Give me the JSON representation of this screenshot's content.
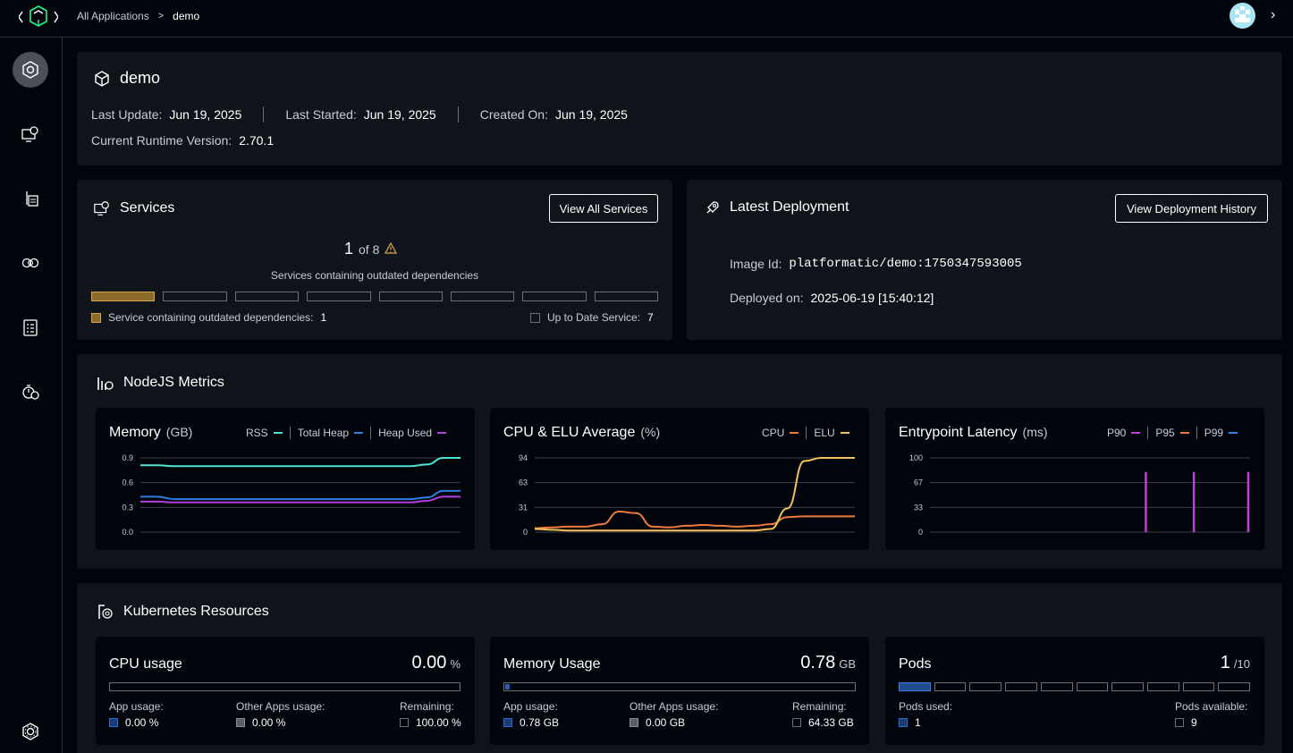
{
  "breadcrumb": {
    "root": "All Applications",
    "current": "demo"
  },
  "app": {
    "name": "demo",
    "last_update_label": "Last Update:",
    "last_update": "Jun 19, 2025",
    "last_started_label": "Last Started:",
    "last_started": "Jun 19, 2025",
    "created_on_label": "Created On:",
    "created_on": "Jun 19, 2025",
    "runtime_label": "Current Runtime Version:",
    "runtime": "2.70.1"
  },
  "services": {
    "title": "Services",
    "view_all": "View All Services",
    "count": "1",
    "of_total": "of 8",
    "description": "Services containing outdated dependencies",
    "outdated_label": "Service containing outdated dependencies:",
    "outdated_count": "1",
    "uptodate_label": "Up to Date Service:",
    "uptodate_count": "7",
    "warning_color": "#d6a44b"
  },
  "deployment": {
    "title": "Latest Deployment",
    "history_button": "View Deployment History",
    "image_label": "Image Id:",
    "image_id": "platformatic/demo:1750347593005",
    "deployed_label": "Deployed on:",
    "deployed_on": "2025-06-19 [15:40:12]"
  },
  "nodejs": {
    "title": "NodeJS Metrics",
    "memory": {
      "title": "Memory",
      "unit": "(GB)",
      "legend": [
        {
          "name": "RSS",
          "color": "#4fe3d1"
        },
        {
          "name": "Total Heap",
          "color": "#2f7fe0"
        },
        {
          "name": "Heap Used",
          "color": "#b43de0"
        }
      ]
    },
    "cpu": {
      "title": "CPU & ELU Average",
      "unit": "(%)",
      "legend": [
        {
          "name": "CPU",
          "color": "#f07a3e"
        },
        {
          "name": "ELU",
          "color": "#f2c15a"
        }
      ]
    },
    "latency": {
      "title": "Entrypoint Latency",
      "unit": "(ms)",
      "legend": [
        {
          "name": "P90",
          "color": "#c03fd6"
        },
        {
          "name": "P95",
          "color": "#f07a3e"
        },
        {
          "name": "P99",
          "color": "#2f7fe0"
        }
      ]
    }
  },
  "chart_data": [
    {
      "type": "line",
      "title": "Memory",
      "ylabel": "(GB)",
      "yticks": [
        "0.9",
        "0.6",
        "0.3",
        "0.0"
      ],
      "ylim": [
        0,
        0.9
      ],
      "x": [
        0,
        1,
        2,
        3,
        4,
        5,
        6,
        7,
        8,
        9,
        10,
        11,
        12,
        13,
        14,
        15,
        16,
        17,
        18,
        19
      ],
      "series": [
        {
          "name": "RSS",
          "color": "#4fe3d1",
          "values": [
            0.81,
            0.81,
            0.8,
            0.8,
            0.8,
            0.8,
            0.8,
            0.8,
            0.8,
            0.8,
            0.8,
            0.8,
            0.8,
            0.8,
            0.8,
            0.8,
            0.8,
            0.82,
            0.9,
            0.9
          ]
        },
        {
          "name": "Total Heap",
          "color": "#2f7fe0",
          "values": [
            0.43,
            0.43,
            0.4,
            0.4,
            0.4,
            0.4,
            0.4,
            0.4,
            0.4,
            0.4,
            0.4,
            0.4,
            0.4,
            0.4,
            0.4,
            0.4,
            0.4,
            0.42,
            0.5,
            0.5
          ]
        },
        {
          "name": "Heap Used",
          "color": "#b43de0",
          "values": [
            0.37,
            0.37,
            0.36,
            0.36,
            0.36,
            0.36,
            0.36,
            0.36,
            0.36,
            0.36,
            0.36,
            0.36,
            0.36,
            0.36,
            0.36,
            0.36,
            0.36,
            0.38,
            0.43,
            0.43
          ]
        }
      ]
    },
    {
      "type": "line",
      "title": "CPU & ELU Average",
      "ylabel": "(%)",
      "yticks": [
        "94",
        "63",
        "31",
        "0"
      ],
      "ylim": [
        0,
        94
      ],
      "x": [
        0,
        1,
        2,
        3,
        4,
        5,
        6,
        7,
        8,
        9,
        10,
        11,
        12,
        13,
        14,
        15,
        16,
        17,
        18,
        19
      ],
      "series": [
        {
          "name": "CPU",
          "color": "#f07a3e",
          "values": [
            5,
            6,
            7,
            7,
            10,
            26,
            24,
            7,
            6,
            8,
            9,
            8,
            7,
            8,
            10,
            19,
            20,
            20,
            20,
            20
          ]
        },
        {
          "name": "ELU",
          "color": "#f2c15a",
          "values": [
            4,
            3,
            2,
            2,
            2,
            2,
            2,
            2,
            2,
            2,
            2,
            2,
            2,
            2,
            4,
            30,
            90,
            94,
            94,
            94
          ]
        }
      ]
    },
    {
      "type": "bar",
      "title": "Entrypoint Latency",
      "ylabel": "(ms)",
      "yticks": [
        "100",
        "67",
        "33",
        "0"
      ],
      "ylim": [
        0,
        100
      ],
      "series": [
        {
          "name": "P90",
          "color": "#c03fd6",
          "spikes": [
            81,
            81,
            81
          ]
        }
      ]
    }
  ],
  "k8s": {
    "title": "Kubernetes Resources",
    "cpu": {
      "title": "CPU usage",
      "value": "0.00",
      "unit": "%",
      "app_label": "App usage:",
      "app_value": "0.00 %",
      "other_label": "Other Apps usage:",
      "other_value": "0.00 %",
      "remaining_label": "Remaining:",
      "remaining_value": "100.00 %",
      "fill_percent": 0
    },
    "memory": {
      "title": "Memory Usage",
      "value": "0.78",
      "unit": "GB",
      "app_label": "App usage:",
      "app_value": "0.78 GB",
      "other_label": "Other Apps usage:",
      "other_value": "0.00 GB",
      "remaining_label": "Remaining:",
      "remaining_value": "64.33 GB",
      "fill_percent": 1.2
    },
    "pods": {
      "title": "Pods",
      "value": "1",
      "unit": "/10",
      "used_label": "Pods used:",
      "used_value": "1",
      "available_label": "Pods available:",
      "available_value": "9"
    }
  }
}
